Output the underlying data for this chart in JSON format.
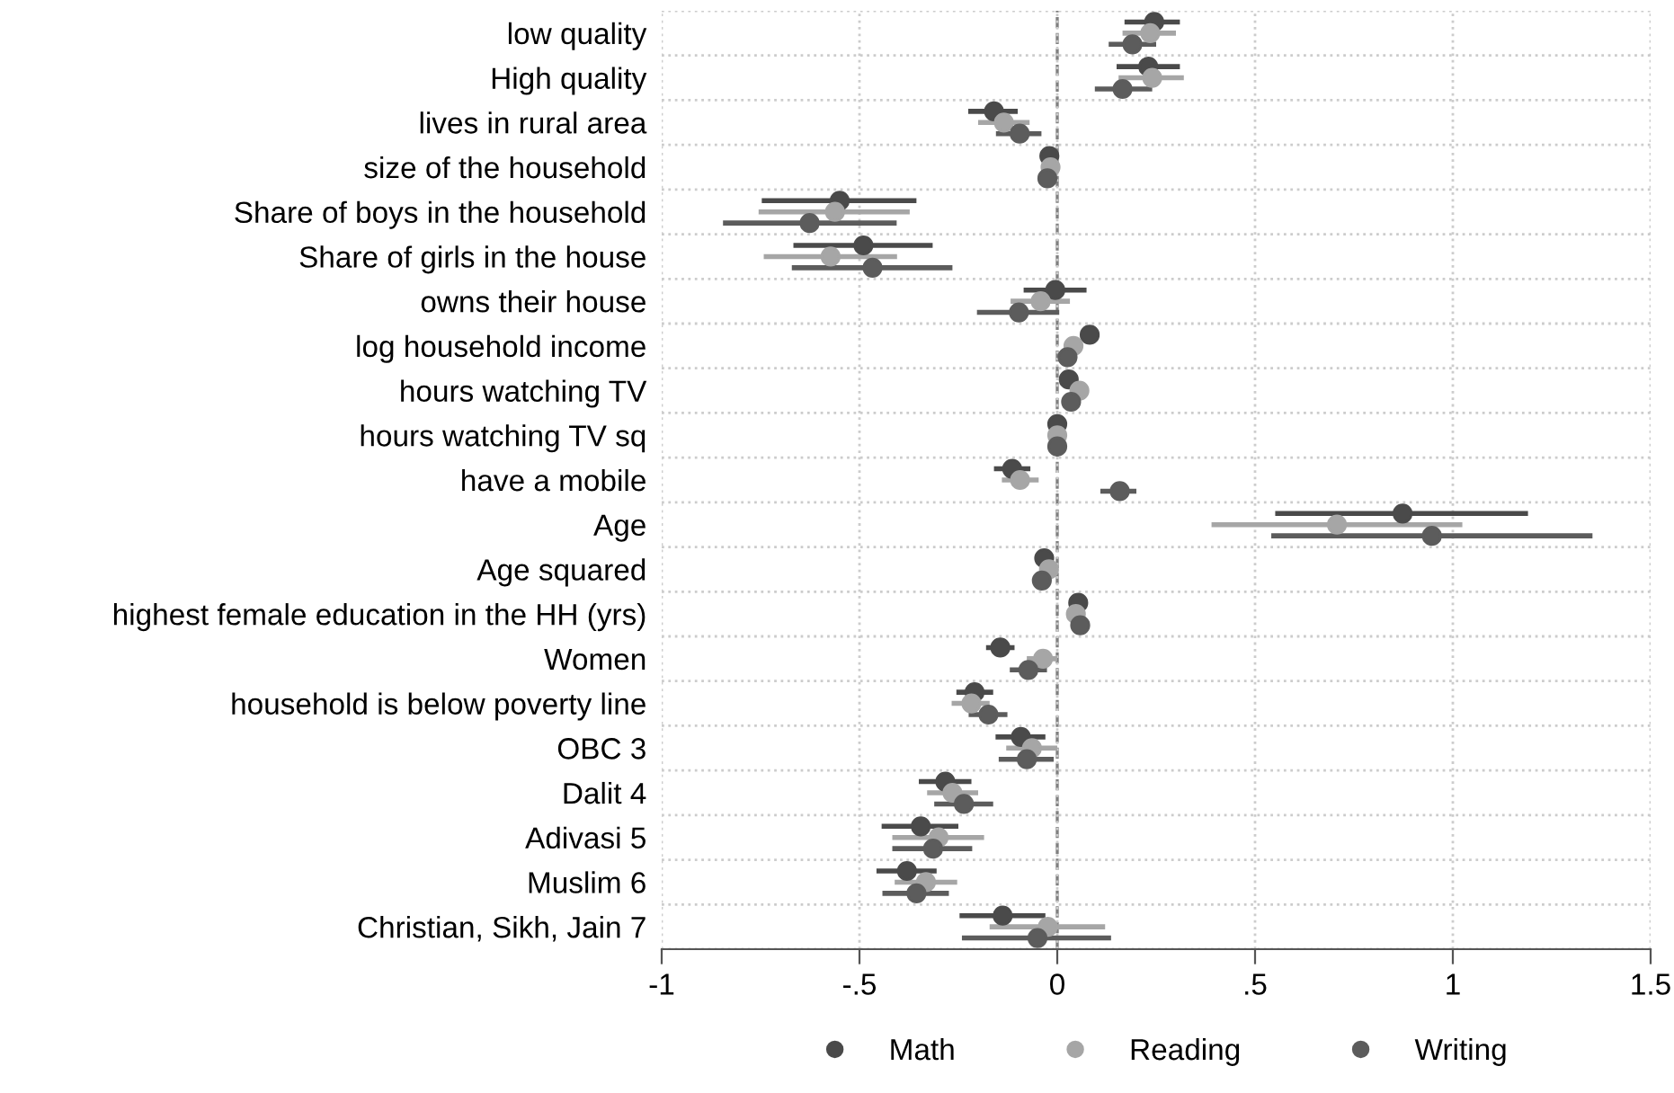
{
  "chart_data": {
    "type": "scatter",
    "orientation": "horizontal",
    "categories": [
      "low quality",
      "High quality",
      "lives in rural area",
      "size of the household",
      "Share of boys in the household",
      "Share of girls in the house",
      "owns their house",
      "log household income",
      "hours watching TV",
      "hours watching TV sq",
      "have a mobile",
      "Age",
      "Age squared",
      "highest female education in the HH (yrs)",
      "Women",
      "household is below poverty line",
      "OBC 3",
      "Dalit 4",
      "Adivasi 5",
      "Muslim 6",
      "Christian, Sikh, Jain 7"
    ],
    "series": [
      {
        "name": "Math",
        "color": "#4a4a4a",
        "values": [
          0.245,
          0.23,
          -0.16,
          -0.02,
          -0.55,
          -0.49,
          -0.005,
          0.082,
          0.029,
          0,
          -0.114,
          0.873,
          -0.033,
          0.053,
          -0.144,
          -0.209,
          -0.092,
          -0.283,
          -0.345,
          -0.38,
          -0.138
        ],
        "errors": [
          [
            0.17,
            0.31
          ],
          [
            0.15,
            0.31
          ],
          [
            -0.225,
            -0.1
          ],
          null,
          [
            -0.747,
            -0.356
          ],
          [
            -0.667,
            -0.315
          ],
          [
            -0.085,
            0.074
          ],
          null,
          null,
          null,
          [
            -0.16,
            -0.068
          ],
          [
            0.551,
            1.19
          ],
          null,
          null,
          [
            -0.18,
            -0.108
          ],
          [
            -0.255,
            -0.162
          ],
          [
            -0.156,
            -0.03
          ],
          [
            -0.35,
            -0.217
          ],
          [
            -0.444,
            -0.25
          ],
          [
            -0.457,
            -0.305
          ],
          [
            -0.247,
            -0.03
          ]
        ]
      },
      {
        "name": "Reading",
        "color": "#a6a6a6",
        "values": [
          0.235,
          0.24,
          -0.135,
          -0.017,
          -0.562,
          -0.573,
          -0.042,
          0.041,
          0.056,
          0,
          -0.094,
          0.707,
          -0.021,
          0.047,
          -0.036,
          -0.217,
          -0.064,
          -0.265,
          -0.3,
          -0.332,
          -0.024
        ],
        "errors": [
          [
            0.165,
            0.3
          ],
          [
            0.155,
            0.32
          ],
          [
            -0.2,
            -0.07
          ],
          null,
          [
            -0.755,
            -0.373
          ],
          [
            -0.742,
            -0.405
          ],
          [
            -0.118,
            0.032
          ],
          null,
          null,
          null,
          [
            -0.14,
            -0.047
          ],
          [
            0.39,
            1.024
          ],
          null,
          null,
          [
            -0.077,
            0
          ],
          [
            -0.267,
            -0.171
          ],
          [
            -0.129,
            0
          ],
          [
            -0.329,
            -0.2
          ],
          [
            -0.417,
            -0.185
          ],
          [
            -0.411,
            -0.253
          ],
          [
            -0.171,
            0.121
          ]
        ]
      },
      {
        "name": "Writing",
        "color": "#5c5c5c",
        "values": [
          0.19,
          0.165,
          -0.095,
          -0.025,
          -0.626,
          -0.467,
          -0.097,
          0.026,
          0.035,
          0,
          0.158,
          0.947,
          -0.039,
          0.058,
          -0.073,
          -0.174,
          -0.077,
          -0.236,
          -0.314,
          -0.356,
          -0.05
        ],
        "errors": [
          [
            0.13,
            0.25
          ],
          [
            0.095,
            0.24
          ],
          [
            -0.155,
            -0.04
          ],
          null,
          [
            -0.845,
            -0.406
          ],
          [
            -0.671,
            -0.265
          ],
          [
            -0.203,
            0.005
          ],
          null,
          null,
          null,
          [
            0.109,
            0.2
          ],
          [
            0.541,
            1.353
          ],
          null,
          null,
          [
            -0.12,
            -0.026
          ],
          [
            -0.224,
            -0.126
          ],
          [
            -0.148,
            -0.009
          ],
          [
            -0.311,
            -0.162
          ],
          [
            -0.417,
            -0.215
          ],
          [
            -0.442,
            -0.274
          ],
          [
            -0.241,
            0.136
          ]
        ]
      }
    ],
    "xlim": [
      -1,
      1.5
    ],
    "xticks": [
      -1,
      {
        "value": -0.5,
        "label": "-.5"
      },
      0,
      {
        "value": 0.5,
        "label": ".5"
      },
      1,
      1.5
    ],
    "ref_lines": [
      {
        "axis": "x",
        "value": 0,
        "color": "#808080",
        "line_style": "dashed"
      }
    ],
    "grid": true,
    "legend": "bottom",
    "marker": "circle"
  }
}
